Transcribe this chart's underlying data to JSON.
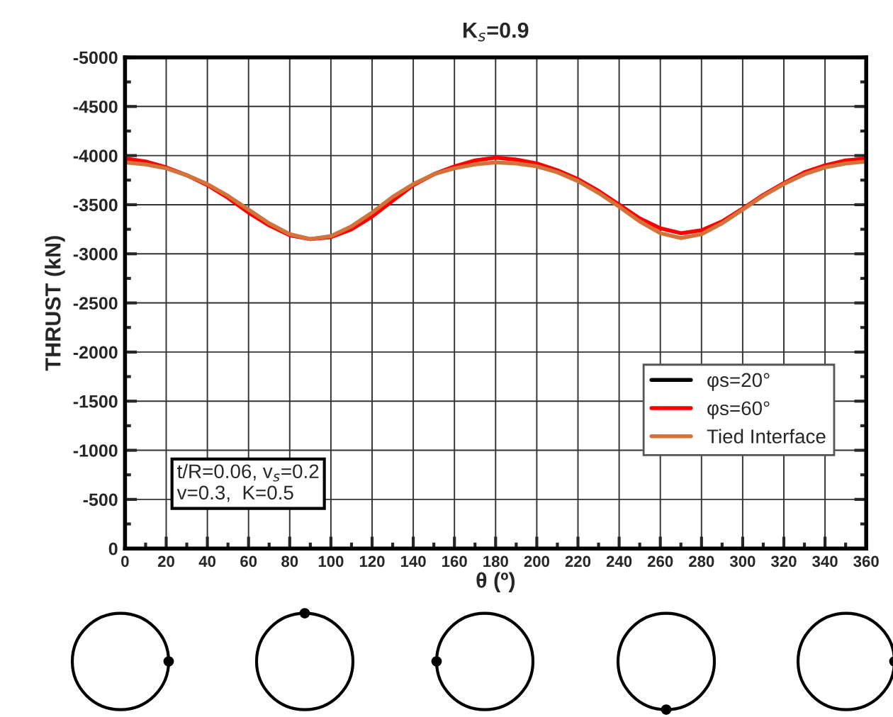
{
  "chart_data": {
    "type": "line",
    "title": "K$_{s}$=0.9",
    "xlabel": "θ (º)",
    "ylabel": "THRUST (kN)",
    "x": [
      0,
      10,
      20,
      30,
      40,
      50,
      60,
      70,
      80,
      90,
      100,
      110,
      120,
      130,
      140,
      150,
      160,
      170,
      180,
      190,
      200,
      210,
      220,
      230,
      240,
      250,
      260,
      270,
      280,
      290,
      300,
      310,
      320,
      330,
      340,
      350,
      360
    ],
    "series": [
      {
        "name": "φs=20°",
        "color": "#000000",
        "values": [
          null,
          null,
          null,
          null,
          null,
          null,
          null,
          null,
          null,
          null,
          null,
          null,
          null,
          null,
          null,
          null,
          null,
          null,
          null,
          null,
          null,
          null,
          null,
          null,
          null,
          null,
          null,
          null,
          null,
          null,
          null,
          null,
          null,
          null,
          null,
          null,
          null
        ]
      },
      {
        "name": "φs=60°",
        "color": "#ff0000",
        "values": [
          -3970,
          -3940,
          -3880,
          -3800,
          -3700,
          -3570,
          -3420,
          -3290,
          -3190,
          -3150,
          -3170,
          -3250,
          -3380,
          -3540,
          -3700,
          -3810,
          -3890,
          -3950,
          -3980,
          -3960,
          -3920,
          -3850,
          -3760,
          -3640,
          -3500,
          -3360,
          -3260,
          -3210,
          -3240,
          -3330,
          -3460,
          -3600,
          -3720,
          -3830,
          -3900,
          -3950,
          -3970
        ]
      },
      {
        "name": "Tied Interface",
        "color": "#d2733c",
        "values": [
          -3930,
          -3910,
          -3870,
          -3800,
          -3710,
          -3590,
          -3450,
          -3310,
          -3200,
          -3150,
          -3180,
          -3280,
          -3420,
          -3580,
          -3710,
          -3810,
          -3870,
          -3910,
          -3930,
          -3920,
          -3890,
          -3830,
          -3740,
          -3620,
          -3480,
          -3330,
          -3210,
          -3160,
          -3200,
          -3310,
          -3450,
          -3590,
          -3710,
          -3810,
          -3880,
          -3920,
          -3940
        ]
      }
    ],
    "xlim": [
      0,
      360
    ],
    "xticks": [
      0,
      20,
      40,
      60,
      80,
      100,
      120,
      140,
      160,
      180,
      200,
      220,
      240,
      260,
      280,
      300,
      320,
      340,
      360
    ],
    "ylim": [
      0,
      -5000
    ],
    "yticks": [
      0,
      -500,
      -1000,
      -1500,
      -2000,
      -2500,
      -3000,
      -3500,
      -4000,
      -4500,
      -5000
    ],
    "grid": true,
    "legend": "bottom right",
    "marker": "none",
    "line_style": "solid",
    "annotations": [
      "t/R=0.06, v$_{s}$=0.2\nv=0.3,  K=0.5"
    ]
  }
}
